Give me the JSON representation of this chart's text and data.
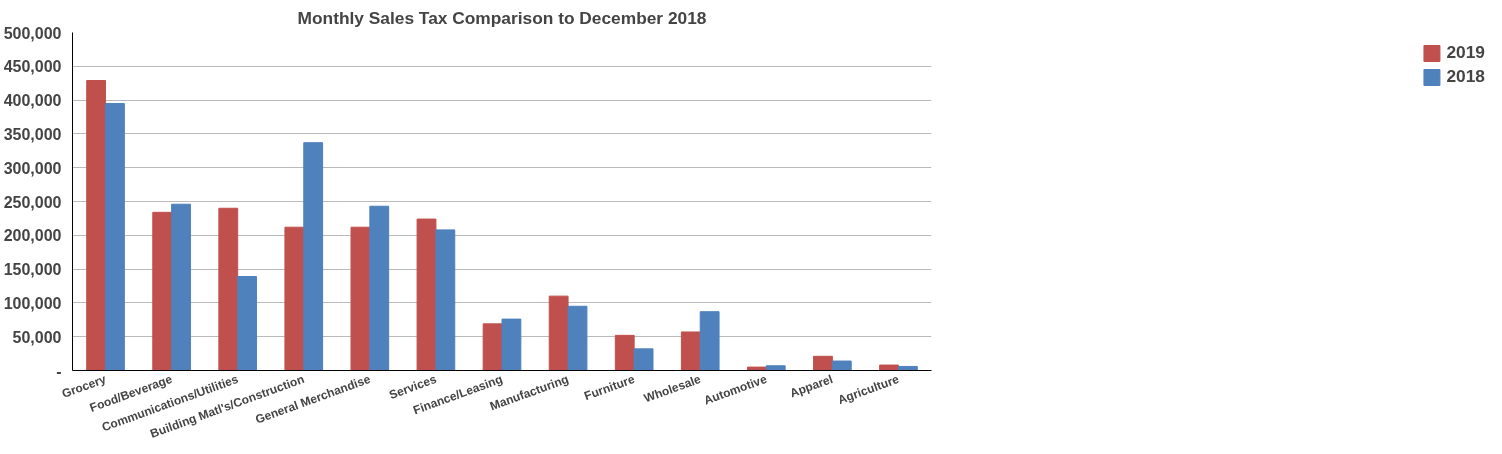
{
  "chart_data": {
    "type": "bar",
    "title": "Monthly Sales Tax Comparison to December 2018",
    "categories": [
      "Grocery",
      "Food/Beverage",
      "Communications/Utilities",
      "Building Matl's/Construction",
      "General Merchandise",
      "Services",
      "Finance/Leasing",
      "Manufacturing",
      "Furniture",
      "Wholesale",
      "Automotive",
      "Apparel",
      "Agriculture"
    ],
    "series": [
      {
        "name": "2019",
        "color": "#c0504d",
        "values": [
          429000,
          234000,
          240000,
          212000,
          212000,
          224000,
          69000,
          110000,
          52000,
          57000,
          5000,
          21000,
          8000
        ]
      },
      {
        "name": "2018",
        "color": "#4f81bd",
        "values": [
          395000,
          246000,
          139000,
          337000,
          243000,
          208000,
          76000,
          95000,
          32000,
          87000,
          7000,
          14000,
          6000
        ]
      }
    ],
    "ylim": [
      0,
      500000
    ],
    "yticks": [
      {
        "value": 0,
        "label": "-"
      },
      {
        "value": 50000,
        "label": "50,000"
      },
      {
        "value": 100000,
        "label": "100,000"
      },
      {
        "value": 150000,
        "label": "150,000"
      },
      {
        "value": 200000,
        "label": "200,000"
      },
      {
        "value": 250000,
        "label": "250,000"
      },
      {
        "value": 300000,
        "label": "300,000"
      },
      {
        "value": 350000,
        "label": "350,000"
      },
      {
        "value": 400000,
        "label": "400,000"
      },
      {
        "value": 450000,
        "label": "450,000"
      },
      {
        "value": 500000,
        "label": "500,000"
      }
    ],
    "grid": "y",
    "legend": "right"
  }
}
